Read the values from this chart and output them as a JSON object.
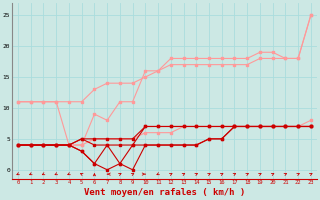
{
  "background_color": "#cce8e4",
  "grid_color": "#aadddd",
  "xlabel": "Vent moyen/en rafales ( km/h )",
  "xlabel_color": "#cc0000",
  "xlabel_fontsize": 6.5,
  "ylim": [
    -1.5,
    27
  ],
  "xlim": [
    -0.5,
    23.5
  ],
  "line_color_dark": "#cc0000",
  "line_color_light": "#ff9999",
  "series": {
    "light_upper_y": [
      11,
      11,
      11,
      11,
      4,
      4,
      9,
      8,
      11,
      11,
      16,
      16,
      18,
      18,
      18,
      18,
      18,
      18,
      18,
      19,
      19,
      18,
      18,
      25
    ],
    "light_mid_y": [
      11,
      11,
      11,
      11,
      11,
      11,
      13,
      14,
      14,
      14,
      15,
      16,
      17,
      17,
      17,
      17,
      17,
      17,
      17,
      18,
      18,
      18,
      18,
      25
    ],
    "light_lower_y": [
      4,
      4,
      4,
      4,
      4,
      4,
      5,
      5,
      5,
      5,
      6,
      6,
      6,
      7,
      7,
      7,
      7,
      7,
      7,
      7,
      7,
      7,
      7,
      8
    ],
    "dark_upper_y": [
      4,
      4,
      4,
      4,
      4,
      5,
      5,
      5,
      5,
      5,
      7,
      7,
      7,
      7,
      7,
      7,
      7,
      7,
      7,
      7,
      7,
      7,
      7,
      7
    ],
    "dark_mid_y": [
      4,
      4,
      4,
      4,
      4,
      5,
      4,
      4,
      4,
      4,
      7,
      7,
      7,
      7,
      7,
      7,
      7,
      7,
      7,
      7,
      7,
      7,
      7,
      7
    ],
    "dark_lower1_y": [
      4,
      4,
      4,
      4,
      4,
      3,
      1,
      0,
      1,
      0,
      4,
      4,
      4,
      4,
      4,
      5,
      5,
      7,
      7,
      7,
      7,
      7,
      7,
      7
    ],
    "dark_lower2_y": [
      4,
      4,
      4,
      4,
      4,
      3,
      1,
      4,
      1,
      4,
      4,
      4,
      4,
      4,
      4,
      5,
      5,
      7,
      7,
      7,
      7,
      7,
      7,
      7
    ]
  },
  "arrow_angles": [
    225,
    225,
    225,
    225,
    225,
    315,
    0,
    270,
    45,
    45,
    90,
    225,
    45,
    45,
    45,
    45,
    45,
    45,
    45,
    45,
    45,
    45,
    45,
    45
  ]
}
